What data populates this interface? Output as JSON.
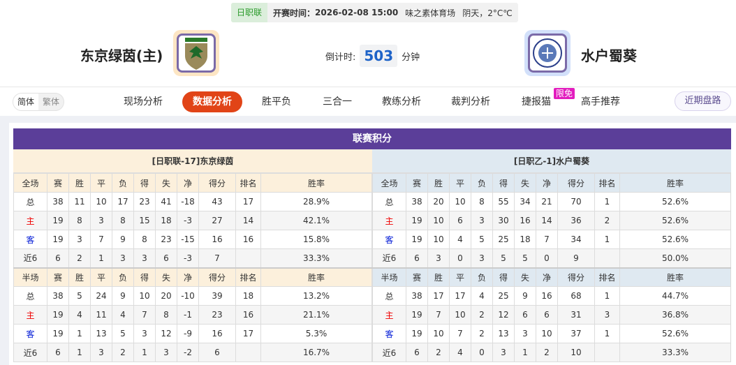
{
  "match": {
    "league": "日职联",
    "time_label": "开赛时间：",
    "time": "2026-02-08 15:00",
    "venue": "味之素体育场",
    "weather": "阴天，2°C℃"
  },
  "home": {
    "name": "东京绿茵(主)",
    "logo_text": "TOKYO VERDY",
    "logo_bg": "#fde6c4"
  },
  "away": {
    "name": "水户蜀葵",
    "logo_bg": "#d2e0fa"
  },
  "countdown": {
    "label": "倒计时:",
    "value": "503",
    "unit": "分钟"
  },
  "lang": {
    "simplified": "简体",
    "traditional": "繁体"
  },
  "tabs": [
    "现场分析",
    "数据分析",
    "胜平负",
    "三合一",
    "教练分析",
    "裁判分析",
    "捷报猫",
    "高手推荐"
  ],
  "active_tab": "数据分析",
  "badge": "限免",
  "recent_button": "近期盘路",
  "standings": {
    "title": "联赛积分",
    "columns_full": [
      "全场",
      "赛",
      "胜",
      "平",
      "负",
      "得",
      "失",
      "净",
      "得分",
      "排名",
      "胜率"
    ],
    "columns_half": [
      "半场",
      "赛",
      "胜",
      "平",
      "负",
      "得",
      "失",
      "净",
      "得分",
      "排名",
      "胜率"
    ],
    "home": {
      "header": "[日职联-17]东京绿茵",
      "full": [
        [
          "总",
          "38",
          "11",
          "10",
          "17",
          "23",
          "41",
          "-18",
          "43",
          "17",
          "28.9%"
        ],
        [
          "主",
          "19",
          "8",
          "3",
          "8",
          "15",
          "18",
          "-3",
          "27",
          "14",
          "42.1%"
        ],
        [
          "客",
          "19",
          "3",
          "7",
          "9",
          "8",
          "23",
          "-15",
          "16",
          "16",
          "15.8%"
        ],
        [
          "近6",
          "6",
          "2",
          "1",
          "3",
          "3",
          "6",
          "-3",
          "7",
          "",
          "33.3%"
        ]
      ],
      "half": [
        [
          "总",
          "38",
          "5",
          "24",
          "9",
          "10",
          "20",
          "-10",
          "39",
          "18",
          "13.2%"
        ],
        [
          "主",
          "19",
          "4",
          "11",
          "4",
          "7",
          "8",
          "-1",
          "23",
          "16",
          "21.1%"
        ],
        [
          "客",
          "19",
          "1",
          "13",
          "5",
          "3",
          "12",
          "-9",
          "16",
          "17",
          "5.3%"
        ],
        [
          "近6",
          "6",
          "1",
          "3",
          "2",
          "1",
          "3",
          "-2",
          "6",
          "",
          "16.7%"
        ]
      ]
    },
    "away": {
      "header": "[日职乙-1]水户蜀葵",
      "full": [
        [
          "总",
          "38",
          "20",
          "10",
          "8",
          "55",
          "34",
          "21",
          "70",
          "1",
          "52.6%"
        ],
        [
          "主",
          "19",
          "10",
          "6",
          "3",
          "30",
          "16",
          "14",
          "36",
          "2",
          "52.6%"
        ],
        [
          "客",
          "19",
          "10",
          "4",
          "5",
          "25",
          "18",
          "7",
          "34",
          "1",
          "52.6%"
        ],
        [
          "近6",
          "6",
          "3",
          "0",
          "3",
          "5",
          "5",
          "0",
          "9",
          "",
          "50.0%"
        ]
      ],
      "half": [
        [
          "总",
          "38",
          "17",
          "17",
          "4",
          "25",
          "9",
          "16",
          "68",
          "1",
          "44.7%"
        ],
        [
          "主",
          "19",
          "7",
          "10",
          "2",
          "12",
          "6",
          "6",
          "31",
          "3",
          "36.8%"
        ],
        [
          "客",
          "19",
          "10",
          "7",
          "2",
          "13",
          "3",
          "10",
          "37",
          "1",
          "52.6%"
        ],
        [
          "近6",
          "6",
          "2",
          "4",
          "0",
          "3",
          "1",
          "2",
          "10",
          "",
          "33.3%"
        ]
      ]
    }
  }
}
